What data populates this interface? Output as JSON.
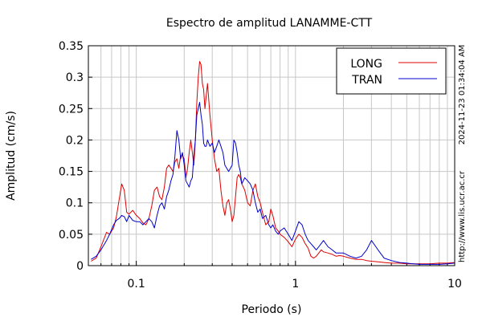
{
  "chart_data": {
    "type": "line",
    "title": "Espectro de amplitud LANAMME-CTT",
    "xlabel": "Periodo (s)",
    "ylabel": "Amplitud (cm/s)",
    "x_scale": "log",
    "xlim": [
      0.05,
      10
    ],
    "ylim": [
      0,
      0.35
    ],
    "grid": true,
    "legend_position": "top-right",
    "x_ticks": [
      {
        "value": 0.1,
        "label": "0.1"
      },
      {
        "value": 1,
        "label": "1"
      },
      {
        "value": 10,
        "label": "10"
      }
    ],
    "y_ticks": [
      {
        "value": 0,
        "label": "0"
      },
      {
        "value": 0.05,
        "label": "0.05"
      },
      {
        "value": 0.1,
        "label": "0.1"
      },
      {
        "value": 0.15,
        "label": "0.15"
      },
      {
        "value": 0.2,
        "label": "0.2"
      },
      {
        "value": 0.25,
        "label": "0.25"
      },
      {
        "value": 0.3,
        "label": "0.3"
      },
      {
        "value": 0.35,
        "label": "0.35"
      }
    ],
    "side_texts": {
      "timestamp": "2024-11-23 01:34:04 AM",
      "url": "http://www.lis.ucr.ac.cr"
    },
    "series": [
      {
        "name": "LONG",
        "color": "#dd0000",
        "x": [
          0.052,
          0.056,
          0.06,
          0.065,
          0.068,
          0.072,
          0.075,
          0.078,
          0.081,
          0.084,
          0.087,
          0.09,
          0.095,
          0.1,
          0.105,
          0.11,
          0.115,
          0.12,
          0.125,
          0.13,
          0.135,
          0.14,
          0.145,
          0.15,
          0.155,
          0.16,
          0.165,
          0.17,
          0.175,
          0.18,
          0.185,
          0.19,
          0.195,
          0.2,
          0.205,
          0.21,
          0.215,
          0.22,
          0.225,
          0.23,
          0.235,
          0.24,
          0.245,
          0.25,
          0.255,
          0.26,
          0.265,
          0.27,
          0.275,
          0.28,
          0.29,
          0.3,
          0.31,
          0.32,
          0.33,
          0.34,
          0.35,
          0.36,
          0.37,
          0.38,
          0.39,
          0.4,
          0.41,
          0.42,
          0.43,
          0.44,
          0.45,
          0.46,
          0.48,
          0.5,
          0.52,
          0.54,
          0.56,
          0.58,
          0.6,
          0.62,
          0.65,
          0.68,
          0.7,
          0.72,
          0.75,
          0.78,
          0.8,
          0.85,
          0.9,
          0.95,
          1.0,
          1.05,
          1.1,
          1.15,
          1.2,
          1.25,
          1.3,
          1.35,
          1.4,
          1.45,
          1.5,
          1.6,
          1.7,
          1.8,
          1.9,
          2.0,
          2.2,
          2.4,
          2.6,
          2.8,
          3.0,
          3.3,
          3.6,
          4.0,
          4.5,
          5.0,
          5.5,
          6.0,
          7.0,
          8.0,
          9.0,
          10.0
        ],
        "y": [
          0.007,
          0.012,
          0.03,
          0.053,
          0.05,
          0.06,
          0.078,
          0.105,
          0.13,
          0.12,
          0.085,
          0.082,
          0.088,
          0.08,
          0.075,
          0.068,
          0.065,
          0.075,
          0.095,
          0.12,
          0.125,
          0.11,
          0.105,
          0.125,
          0.155,
          0.16,
          0.155,
          0.15,
          0.165,
          0.17,
          0.155,
          0.175,
          0.175,
          0.17,
          0.14,
          0.155,
          0.18,
          0.2,
          0.18,
          0.16,
          0.2,
          0.26,
          0.3,
          0.325,
          0.32,
          0.29,
          0.28,
          0.25,
          0.27,
          0.29,
          0.24,
          0.2,
          0.17,
          0.15,
          0.155,
          0.12,
          0.095,
          0.08,
          0.1,
          0.105,
          0.09,
          0.07,
          0.08,
          0.11,
          0.14,
          0.145,
          0.14,
          0.13,
          0.12,
          0.1,
          0.095,
          0.12,
          0.13,
          0.11,
          0.1,
          0.085,
          0.065,
          0.07,
          0.09,
          0.08,
          0.06,
          0.055,
          0.05,
          0.045,
          0.038,
          0.03,
          0.042,
          0.05,
          0.045,
          0.035,
          0.028,
          0.015,
          0.012,
          0.015,
          0.02,
          0.025,
          0.022,
          0.02,
          0.018,
          0.015,
          0.016,
          0.015,
          0.012,
          0.01,
          0.01,
          0.008,
          0.007,
          0.006,
          0.005,
          0.004,
          0.004,
          0.003,
          0.003,
          0.003,
          0.003,
          0.004,
          0.004,
          0.005
        ]
      },
      {
        "name": "TRAN",
        "color": "#0000cc",
        "x": [
          0.052,
          0.056,
          0.06,
          0.065,
          0.068,
          0.072,
          0.075,
          0.078,
          0.081,
          0.084,
          0.087,
          0.09,
          0.095,
          0.1,
          0.105,
          0.11,
          0.115,
          0.12,
          0.125,
          0.13,
          0.135,
          0.14,
          0.145,
          0.15,
          0.155,
          0.16,
          0.165,
          0.17,
          0.175,
          0.18,
          0.185,
          0.19,
          0.195,
          0.2,
          0.205,
          0.21,
          0.215,
          0.22,
          0.225,
          0.23,
          0.235,
          0.24,
          0.245,
          0.25,
          0.255,
          0.26,
          0.265,
          0.27,
          0.275,
          0.28,
          0.29,
          0.3,
          0.31,
          0.32,
          0.33,
          0.34,
          0.35,
          0.36,
          0.37,
          0.38,
          0.39,
          0.4,
          0.41,
          0.42,
          0.43,
          0.44,
          0.45,
          0.46,
          0.48,
          0.5,
          0.52,
          0.54,
          0.56,
          0.58,
          0.6,
          0.62,
          0.65,
          0.68,
          0.7,
          0.72,
          0.75,
          0.78,
          0.8,
          0.85,
          0.9,
          0.95,
          1.0,
          1.05,
          1.1,
          1.15,
          1.2,
          1.25,
          1.3,
          1.35,
          1.4,
          1.45,
          1.5,
          1.6,
          1.7,
          1.8,
          1.9,
          2.0,
          2.2,
          2.4,
          2.6,
          2.8,
          3.0,
          3.3,
          3.6,
          4.0,
          4.5,
          5.0,
          5.5,
          6.0,
          7.0,
          8.0,
          9.0,
          10.0
        ],
        "y": [
          0.01,
          0.015,
          0.025,
          0.04,
          0.05,
          0.065,
          0.072,
          0.075,
          0.08,
          0.078,
          0.07,
          0.08,
          0.072,
          0.07,
          0.07,
          0.065,
          0.07,
          0.075,
          0.07,
          0.06,
          0.08,
          0.095,
          0.1,
          0.09,
          0.11,
          0.12,
          0.135,
          0.145,
          0.175,
          0.215,
          0.2,
          0.17,
          0.18,
          0.16,
          0.135,
          0.13,
          0.125,
          0.135,
          0.14,
          0.175,
          0.2,
          0.24,
          0.25,
          0.26,
          0.24,
          0.225,
          0.195,
          0.19,
          0.19,
          0.2,
          0.19,
          0.195,
          0.18,
          0.19,
          0.2,
          0.19,
          0.18,
          0.16,
          0.155,
          0.15,
          0.155,
          0.16,
          0.2,
          0.195,
          0.18,
          0.16,
          0.15,
          0.13,
          0.14,
          0.135,
          0.13,
          0.12,
          0.1,
          0.085,
          0.09,
          0.075,
          0.08,
          0.065,
          0.06,
          0.065,
          0.055,
          0.05,
          0.055,
          0.06,
          0.05,
          0.04,
          0.055,
          0.07,
          0.065,
          0.05,
          0.04,
          0.035,
          0.03,
          0.025,
          0.03,
          0.035,
          0.04,
          0.03,
          0.025,
          0.02,
          0.02,
          0.02,
          0.015,
          0.012,
          0.015,
          0.025,
          0.04,
          0.025,
          0.012,
          0.008,
          0.005,
          0.004,
          0.003,
          0.002,
          0.002,
          0.002,
          0.003,
          0.004
        ]
      }
    ]
  }
}
